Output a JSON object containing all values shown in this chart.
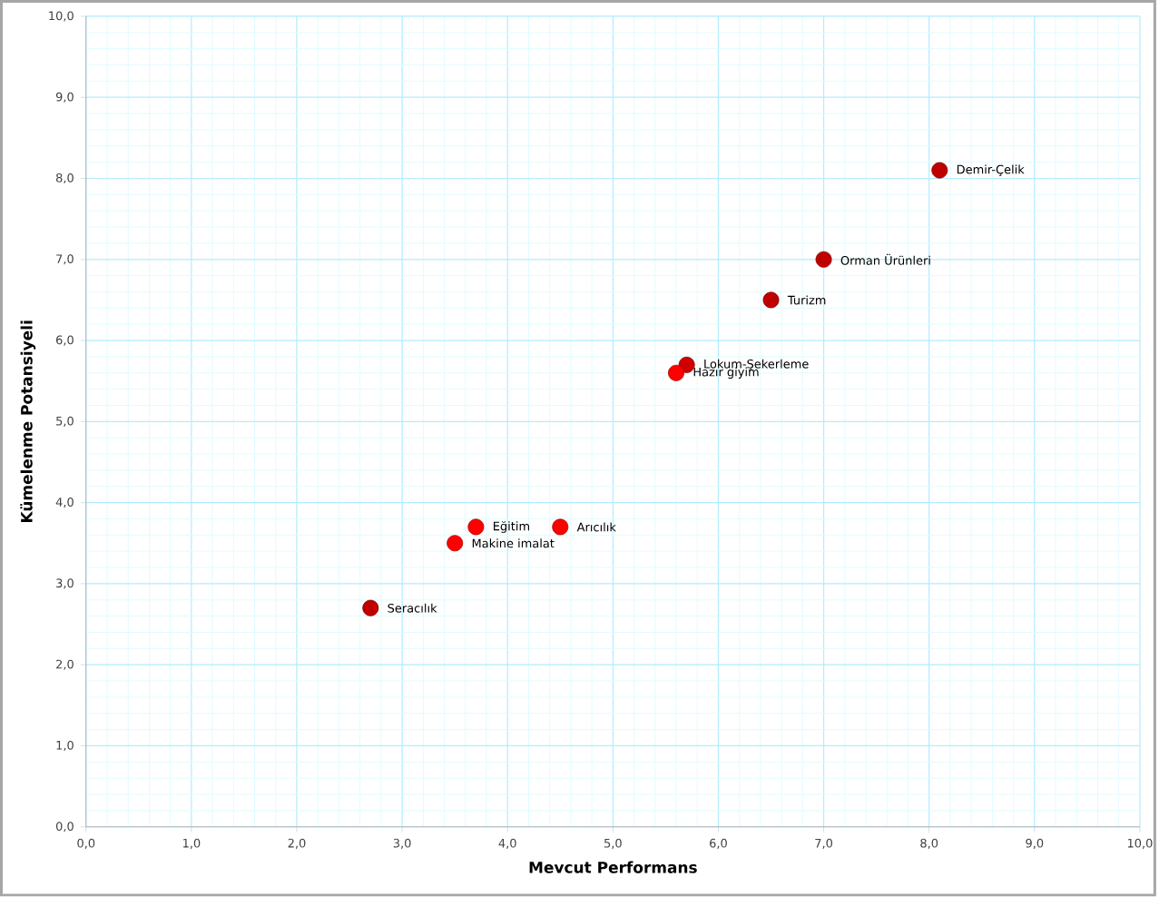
{
  "chart_data": {
    "type": "scatter",
    "xlabel": "Mevcut Performans",
    "ylabel": "Kümelenme Potansiyeli",
    "x": [
      8.1,
      7.0,
      6.5,
      5.7,
      5.6,
      3.7,
      4.5,
      3.5,
      2.7
    ],
    "values": [
      8.1,
      7.0,
      6.5,
      5.7,
      5.6,
      3.7,
      3.7,
      3.5,
      2.7
    ],
    "colors": [
      "#c00000",
      "#c00000",
      "#c00000",
      "#d00000",
      "#ff0000",
      "#ff0000",
      "#ff0000",
      "#ff0000",
      "#c00000"
    ],
    "marker": "circle",
    "grid": true,
    "xlim": [
      0,
      10
    ],
    "ylim": [
      0,
      10
    ],
    "xticks": [
      {
        "value": 0,
        "label": "0,0"
      },
      {
        "value": 1,
        "label": "1,0"
      },
      {
        "value": 2,
        "label": "2,0"
      },
      {
        "value": 3,
        "label": "3,0"
      },
      {
        "value": 4,
        "label": "4,0"
      },
      {
        "value": 5,
        "label": "5,0"
      },
      {
        "value": 6,
        "label": "6,0"
      },
      {
        "value": 7,
        "label": "7,0"
      },
      {
        "value": 8,
        "label": "8,0"
      },
      {
        "value": 9,
        "label": "9,0"
      },
      {
        "value": 10,
        "label": "10,0"
      }
    ],
    "yticks": [
      {
        "value": 0,
        "label": "0,0"
      },
      {
        "value": 1,
        "label": "1,0"
      },
      {
        "value": 2,
        "label": "2,0"
      },
      {
        "value": 3,
        "label": "3,0"
      },
      {
        "value": 4,
        "label": "4,0"
      },
      {
        "value": 5,
        "label": "5,0"
      },
      {
        "value": 6,
        "label": "6,0"
      },
      {
        "value": 7,
        "label": "7,0"
      },
      {
        "value": 8,
        "label": "8,0"
      },
      {
        "value": 9,
        "label": "9,0"
      },
      {
        "value": 10,
        "label": "10,0"
      }
    ],
    "annotations": [
      {
        "text": "Demir-Çelik",
        "x": 8.1,
        "y": 8.1
      },
      {
        "text": "Orman Ürünleri",
        "x": 7.0,
        "y": 7.0
      },
      {
        "text": "Turizm",
        "x": 6.5,
        "y": 6.5
      },
      {
        "text": "Lokum-Şekerleme",
        "x": 5.7,
        "y": 5.7
      },
      {
        "text": "Hazır giyim",
        "x": 5.6,
        "y": 5.6
      },
      {
        "text": "Eğitim",
        "x": 3.7,
        "y": 3.7
      },
      {
        "text": "Arıcılık",
        "x": 4.5,
        "y": 3.7
      },
      {
        "text": "Makine imalat",
        "x": 3.5,
        "y": 3.5
      },
      {
        "text": "Seracılık",
        "x": 2.7,
        "y": 2.7
      }
    ]
  }
}
